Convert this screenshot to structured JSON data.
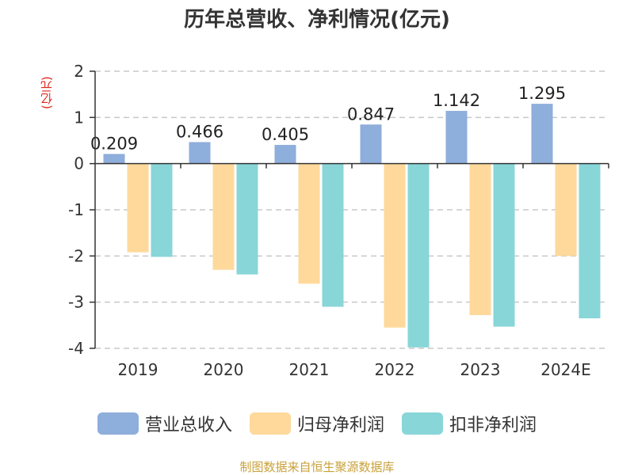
{
  "chart_data": {
    "type": "bar",
    "title": "历年总营收、净利情况(亿元)",
    "ylabel": "(亿元)",
    "ylim": [
      -4,
      2
    ],
    "yticks": [
      2,
      1,
      0,
      -1,
      -2,
      -3,
      -4
    ],
    "categories": [
      "2019",
      "2020",
      "2021",
      "2022",
      "2023",
      "2024E"
    ],
    "grid": true,
    "legend_position": "bottom",
    "series": [
      {
        "name": "营业总收入",
        "color": "#8eaedb",
        "values": [
          0.209,
          0.466,
          0.405,
          0.847,
          1.142,
          1.295
        ],
        "labels": [
          "0.209",
          "0.466",
          "0.405",
          "0.847",
          "1.142",
          "1.295"
        ]
      },
      {
        "name": "归母净利润",
        "color": "#fed99b",
        "values": [
          -1.92,
          -2.3,
          -2.6,
          -3.55,
          -3.28,
          -2.0
        ]
      },
      {
        "name": "扣非净利润",
        "color": "#88d6d8",
        "values": [
          -2.02,
          -2.4,
          -3.1,
          -3.98,
          -3.53,
          -3.35
        ]
      }
    ]
  },
  "source": "制图数据来自恒生聚源数据库"
}
